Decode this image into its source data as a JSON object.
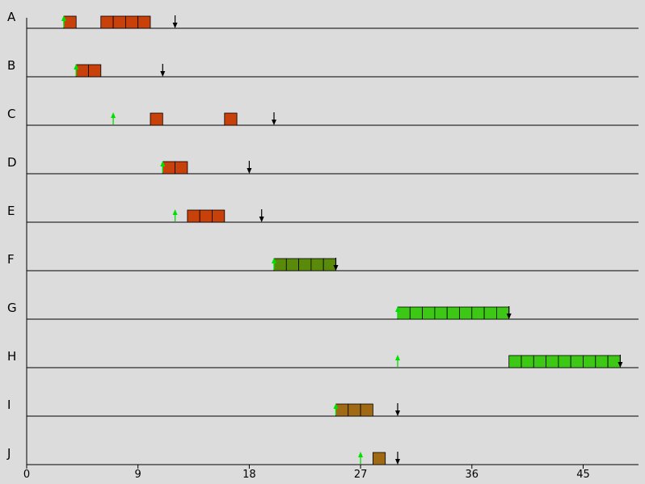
{
  "chart_data": {
    "type": "gantt",
    "rows": [
      "A",
      "B",
      "C",
      "D",
      "E",
      "F",
      "G",
      "H",
      "I",
      "J"
    ],
    "x_ticks": [
      0,
      9,
      18,
      27,
      36,
      45
    ],
    "xlim": [
      0,
      49.5
    ],
    "colors": {
      "#c8400a": "dark orange-red",
      "#5a8a0a": "olive green",
      "#3cc814": "bright green",
      "#a06a14": "brown",
      "arrival": "#00e000",
      "deadline": "#000000"
    },
    "tasks": [
      {
        "row": "A",
        "arrival": 3,
        "deadline": 12,
        "color": "#c8400a",
        "blocks": [
          [
            3,
            4
          ],
          [
            6,
            10
          ]
        ]
      },
      {
        "row": "B",
        "arrival": 4,
        "deadline": 11,
        "color": "#c8400a",
        "blocks": [
          [
            4,
            6
          ]
        ]
      },
      {
        "row": "C",
        "arrival": 7,
        "deadline": 20,
        "color": "#c8400a",
        "blocks": [
          [
            10,
            11
          ],
          [
            16,
            17
          ]
        ]
      },
      {
        "row": "D",
        "arrival": 11,
        "deadline": 18,
        "color": "#c8400a",
        "blocks": [
          [
            11,
            13
          ]
        ]
      },
      {
        "row": "E",
        "arrival": 12,
        "deadline": 19,
        "color": "#c8400a",
        "blocks": [
          [
            13,
            16
          ]
        ]
      },
      {
        "row": "F",
        "arrival": 20,
        "deadline": 25,
        "color": "#5a8a0a",
        "blocks": [
          [
            20,
            25
          ]
        ]
      },
      {
        "row": "G",
        "arrival": 30,
        "deadline": 39,
        "color": "#3cc814",
        "blocks": [
          [
            30,
            39
          ]
        ]
      },
      {
        "row": "H",
        "arrival": 30,
        "deadline": 48,
        "color": "#3cc814",
        "blocks": [
          [
            39,
            48
          ]
        ]
      },
      {
        "row": "I",
        "arrival": 25,
        "deadline": 30,
        "color": "#a06a14",
        "blocks": [
          [
            25,
            28
          ]
        ]
      },
      {
        "row": "J",
        "arrival": 27,
        "deadline": 30,
        "color": "#a06a14",
        "blocks": [
          [
            28,
            29
          ]
        ]
      }
    ]
  }
}
